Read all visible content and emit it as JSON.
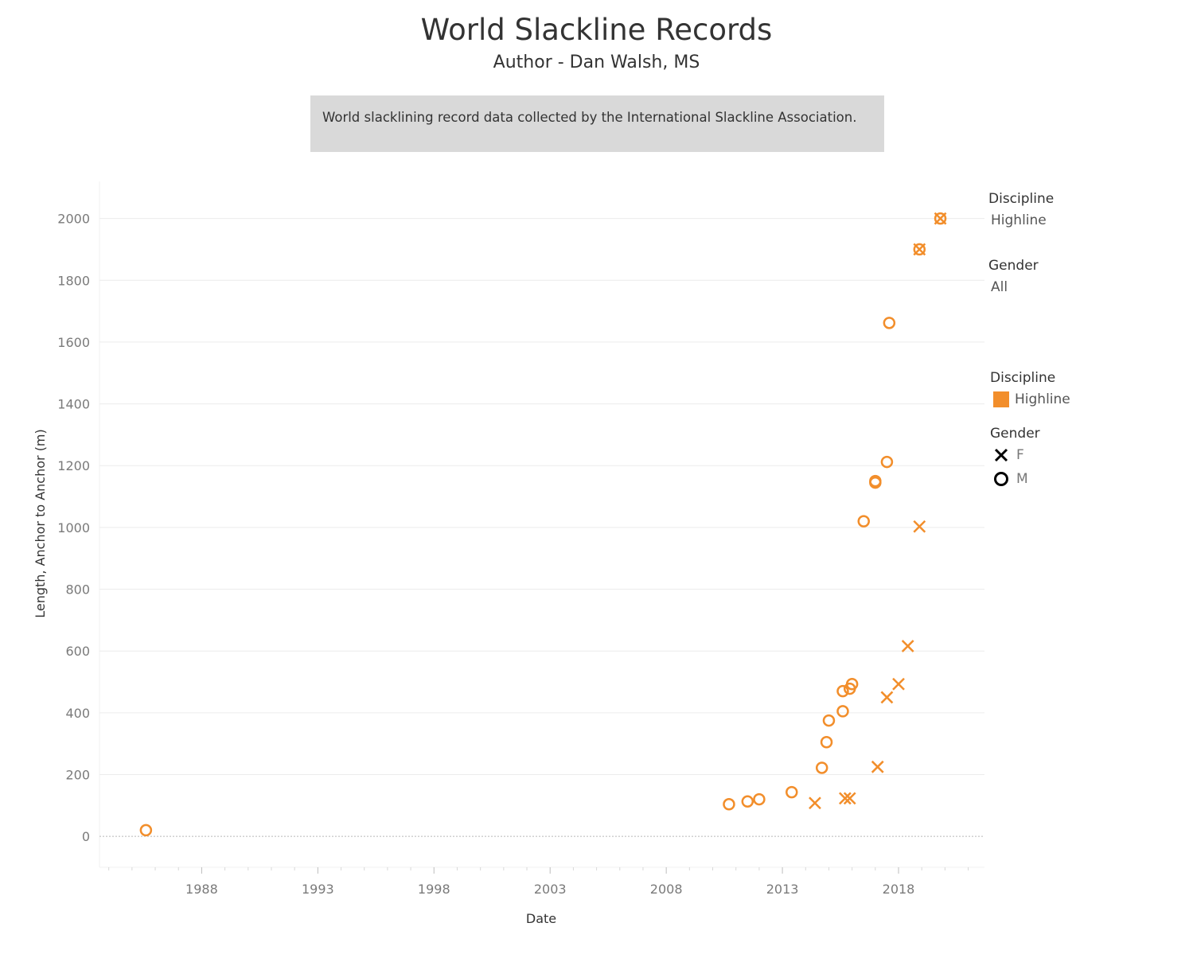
{
  "title": "World Slackline Records",
  "subtitle": "Author - Dan Walsh, MS",
  "description": "World slacklining record data collected by the International Slackline Association.",
  "filters": [
    {
      "title": "Discipline",
      "value": "Highline"
    },
    {
      "title": "Gender",
      "value": "All"
    }
  ],
  "legend": {
    "color": {
      "title": "Discipline",
      "items": [
        {
          "label": "Highline",
          "color": "#f28e2b"
        }
      ]
    },
    "shape": {
      "title": "Gender",
      "items": [
        {
          "label": "F",
          "shape": "cross"
        },
        {
          "label": "M",
          "shape": "circle"
        }
      ]
    }
  },
  "chart_data": {
    "type": "scatter",
    "xlabel": "Date",
    "ylabel": "Length, Anchor to Anchor (m)",
    "x_ticks": [
      "1988",
      "1993",
      "1998",
      "2003",
      "2008",
      "2013",
      "2018"
    ],
    "y_ticks": [
      0,
      200,
      400,
      600,
      800,
      1000,
      1200,
      1400,
      1600,
      1800,
      2000
    ],
    "xlim": [
      1983.6,
      2021.7
    ],
    "ylim": [
      -100,
      2120
    ],
    "grid": "horizontal",
    "legend_position": "right",
    "series": [
      {
        "name": "M",
        "marker": "circle",
        "color": "#f28e2b",
        "points": [
          {
            "x": 1985.6,
            "y": 20
          },
          {
            "x": 2010.7,
            "y": 104
          },
          {
            "x": 2011.5,
            "y": 113
          },
          {
            "x": 2012.0,
            "y": 120
          },
          {
            "x": 2013.4,
            "y": 143
          },
          {
            "x": 2014.7,
            "y": 222
          },
          {
            "x": 2014.9,
            "y": 305
          },
          {
            "x": 2015.0,
            "y": 375
          },
          {
            "x": 2015.6,
            "y": 405
          },
          {
            "x": 2015.6,
            "y": 470
          },
          {
            "x": 2015.9,
            "y": 478
          },
          {
            "x": 2016.0,
            "y": 493
          },
          {
            "x": 2016.5,
            "y": 1020
          },
          {
            "x": 2017.0,
            "y": 1145
          },
          {
            "x": 2017.0,
            "y": 1150
          },
          {
            "x": 2017.5,
            "y": 1212
          },
          {
            "x": 2017.6,
            "y": 1662
          },
          {
            "x": 2018.9,
            "y": 1900
          },
          {
            "x": 2019.8,
            "y": 2000
          }
        ]
      },
      {
        "name": "F",
        "marker": "cross",
        "color": "#f28e2b",
        "points": [
          {
            "x": 2014.4,
            "y": 108
          },
          {
            "x": 2015.7,
            "y": 123
          },
          {
            "x": 2015.9,
            "y": 123
          },
          {
            "x": 2017.1,
            "y": 225
          },
          {
            "x": 2017.5,
            "y": 450
          },
          {
            "x": 2018.0,
            "y": 493
          },
          {
            "x": 2018.4,
            "y": 616
          },
          {
            "x": 2018.9,
            "y": 1003
          },
          {
            "x": 2018.9,
            "y": 1900
          },
          {
            "x": 2019.8,
            "y": 2000
          }
        ]
      }
    ]
  }
}
